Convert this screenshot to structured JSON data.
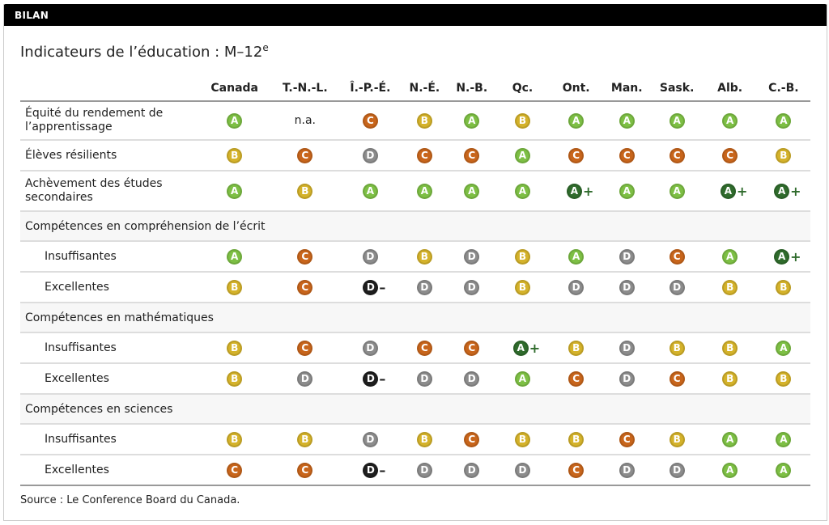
{
  "header": {
    "label": "BILAN"
  },
  "title": {
    "main": "Indicateurs de l’éducation : M–12",
    "sup": "e"
  },
  "colors": {
    "A": "#7dbf44",
    "B": "#d4b22a",
    "C": "#c8651b",
    "D": "#8c8c8c",
    "A+": "#2f6b2c",
    "D-": "#1e1e1e"
  },
  "columns": [
    "Canada",
    "T.-N.-L.",
    "Î.-P.-É.",
    "N.-É.",
    "N.-B.",
    "Qc.",
    "Ont.",
    "Man.",
    "Sask.",
    "Alb.",
    "C.-B."
  ],
  "rows": [
    {
      "type": "row",
      "label": "Équité du rendement de l’apprentissage",
      "grades": [
        "A",
        "n.a.",
        "C",
        "B",
        "A",
        "B",
        "A",
        "A",
        "A",
        "A",
        "A"
      ]
    },
    {
      "type": "row",
      "label": "Élèves résilients",
      "grades": [
        "B",
        "C",
        "D",
        "C",
        "C",
        "A",
        "C",
        "C",
        "C",
        "C",
        "B"
      ]
    },
    {
      "type": "row",
      "label": "Achèvement des études secondaires",
      "grades": [
        "A",
        "B",
        "A",
        "A",
        "A",
        "A",
        "A+",
        "A",
        "A",
        "A+",
        "A+"
      ]
    },
    {
      "type": "section",
      "label": "Compétences en compréhension de l’écrit"
    },
    {
      "type": "sub",
      "label": "Insuffisantes",
      "grades": [
        "A",
        "C",
        "D",
        "B",
        "D",
        "B",
        "A",
        "D",
        "C",
        "A",
        "A+"
      ]
    },
    {
      "type": "sub",
      "label": "Excellentes",
      "grades": [
        "B",
        "C",
        "D-",
        "D",
        "D",
        "B",
        "D",
        "D",
        "D",
        "B",
        "B"
      ]
    },
    {
      "type": "section",
      "label": "Compétences en mathématiques"
    },
    {
      "type": "sub",
      "label": "Insuffisantes",
      "grades": [
        "B",
        "C",
        "D",
        "C",
        "C",
        "A+",
        "B",
        "D",
        "B",
        "B",
        "A"
      ]
    },
    {
      "type": "sub",
      "label": "Excellentes",
      "grades": [
        "B",
        "D",
        "D-",
        "D",
        "D",
        "A",
        "C",
        "D",
        "C",
        "B",
        "B"
      ]
    },
    {
      "type": "section",
      "label": "Compétences en sciences"
    },
    {
      "type": "sub",
      "label": "Insuffisantes",
      "grades": [
        "B",
        "B",
        "D",
        "B",
        "C",
        "B",
        "B",
        "C",
        "B",
        "A",
        "A"
      ]
    },
    {
      "type": "sub",
      "label": "Excellentes",
      "grades": [
        "C",
        "C",
        "D-",
        "D",
        "D",
        "D",
        "C",
        "D",
        "D",
        "A",
        "A"
      ]
    }
  ],
  "source": "Source : Le Conference Board du Canada."
}
